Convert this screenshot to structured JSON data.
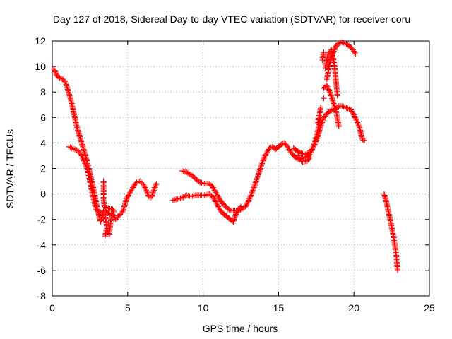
{
  "chart_data": {
    "type": "scatter",
    "title": "Day 127 of 2018, Sidereal Day-to-day VTEC variation (SDTVAR) for receiver coru",
    "xlabel": "GPS time / hours",
    "ylabel": "SDTVAR / TECUs",
    "xlim": [
      0,
      25
    ],
    "ylim": [
      -8,
      12
    ],
    "x_ticks": [
      0,
      5,
      10,
      15,
      20,
      25
    ],
    "y_ticks": [
      -8,
      -6,
      -4,
      -2,
      0,
      2,
      4,
      6,
      8,
      10,
      12
    ],
    "grid": true,
    "legend": "none",
    "marker": "+",
    "color": "#ff0000",
    "series": [
      {
        "points": [
          [
            0.1,
            9.8
          ],
          [
            0.2,
            9.6
          ],
          [
            0.3,
            9.3
          ],
          [
            0.5,
            9.1
          ],
          [
            0.7,
            9.0
          ],
          [
            0.9,
            8.7
          ],
          [
            1.0,
            8.3
          ],
          [
            1.1,
            7.9
          ],
          [
            1.2,
            7.5
          ],
          [
            1.3,
            7.0
          ],
          [
            1.4,
            6.5
          ],
          [
            1.5,
            6.0
          ],
          [
            1.6,
            5.4
          ],
          [
            1.7,
            5.0
          ],
          [
            1.8,
            4.6
          ],
          [
            1.9,
            4.2
          ],
          [
            2.0,
            3.8
          ],
          [
            2.1,
            3.4
          ],
          [
            2.2,
            3.0
          ],
          [
            2.3,
            2.6
          ],
          [
            2.4,
            2.1
          ],
          [
            2.5,
            1.6
          ],
          [
            2.6,
            1.1
          ],
          [
            2.7,
            0.6
          ],
          [
            2.8,
            0.0
          ],
          [
            2.9,
            -0.6
          ],
          [
            3.0,
            -1.2
          ],
          [
            3.1,
            -1.7
          ],
          [
            3.2,
            -2.2
          ],
          [
            3.3,
            -1.8
          ],
          [
            3.4,
            -1.5
          ],
          [
            3.5,
            -1.6
          ],
          [
            3.6,
            -2.5
          ],
          [
            3.7,
            -3.0
          ],
          [
            3.8,
            -2.9
          ],
          [
            3.9,
            -2.0
          ],
          [
            4.0,
            -1.6
          ],
          [
            4.1,
            -1.8
          ],
          [
            4.2,
            -2.0
          ],
          [
            4.3,
            -1.9
          ],
          [
            4.4,
            -1.7
          ],
          [
            4.5,
            -1.6
          ],
          [
            4.6,
            -1.5
          ],
          [
            4.7,
            -1.3
          ],
          [
            4.8,
            -0.9
          ],
          [
            4.9,
            -0.5
          ],
          [
            5.0,
            -0.2
          ],
          [
            5.1,
            0.0
          ],
          [
            5.2,
            0.2
          ],
          [
            5.3,
            0.4
          ],
          [
            5.4,
            0.6
          ],
          [
            5.5,
            0.8
          ],
          [
            5.6,
            0.9
          ],
          [
            5.7,
            1.0
          ],
          [
            5.8,
            1.0
          ],
          [
            5.9,
            0.9
          ],
          [
            6.0,
            0.8
          ],
          [
            6.1,
            0.6
          ],
          [
            6.2,
            0.4
          ],
          [
            6.3,
            0.1
          ],
          [
            6.4,
            -0.2
          ],
          [
            6.5,
            -0.3
          ],
          [
            6.6,
            -0.2
          ],
          [
            6.7,
            0.2
          ],
          [
            6.8,
            0.5
          ],
          [
            6.9,
            0.8
          ],
          [
            1.1,
            3.7
          ],
          [
            1.3,
            3.6
          ],
          [
            1.5,
            3.5
          ],
          [
            1.7,
            3.4
          ],
          [
            1.9,
            3.1
          ],
          [
            2.1,
            2.6
          ],
          [
            2.3,
            2.0
          ],
          [
            2.5,
            1.0
          ],
          [
            2.7,
            -0.2
          ],
          [
            2.9,
            -1.2
          ],
          [
            3.1,
            -1.5
          ],
          [
            3.3,
            -1.4
          ],
          [
            3.5,
            -1.3
          ],
          [
            3.7,
            -1.5
          ],
          [
            3.9,
            -1.6
          ],
          [
            3.5,
            -3.3
          ],
          [
            3.6,
            -2.8
          ],
          [
            3.8,
            -3.2
          ],
          [
            3.4,
            1.0
          ],
          [
            3.4,
            0.3
          ],
          [
            3.4,
            -0.4
          ],
          [
            3.45,
            -1.0
          ],
          [
            4.0,
            -1.2
          ],
          [
            4.1,
            -1.4
          ],
          [
            8.0,
            -0.5
          ],
          [
            8.3,
            -0.4
          ],
          [
            8.6,
            -0.3
          ],
          [
            8.9,
            -0.1
          ],
          [
            9.2,
            -0.2
          ],
          [
            9.5,
            -0.1
          ],
          [
            9.8,
            -0.1
          ],
          [
            10.1,
            -0.1
          ],
          [
            10.4,
            0.0
          ],
          [
            10.7,
            -0.3
          ],
          [
            11.0,
            -1.0
          ],
          [
            11.2,
            -1.4
          ],
          [
            11.4,
            -1.6
          ],
          [
            11.6,
            -1.8
          ],
          [
            11.8,
            -2.0
          ],
          [
            12.0,
            -2.2
          ],
          [
            12.2,
            -1.5
          ],
          [
            12.5,
            -1.0
          ],
          [
            8.6,
            1.8
          ],
          [
            8.9,
            1.7
          ],
          [
            9.2,
            1.5
          ],
          [
            9.5,
            1.2
          ],
          [
            9.8,
            0.9
          ],
          [
            10.1,
            0.8
          ],
          [
            10.4,
            0.8
          ],
          [
            10.6,
            0.6
          ],
          [
            10.8,
            0.2
          ],
          [
            11.0,
            -0.2
          ],
          [
            11.2,
            -0.6
          ],
          [
            11.5,
            -1.0
          ],
          [
            11.8,
            -1.3
          ],
          [
            12.1,
            -1.3
          ],
          [
            12.4,
            -1.3
          ],
          [
            12.8,
            -1.0
          ],
          [
            13.0,
            -0.6
          ],
          [
            13.2,
            0.0
          ],
          [
            13.4,
            0.6
          ],
          [
            13.6,
            1.3
          ],
          [
            13.8,
            2.0
          ],
          [
            14.0,
            2.7
          ],
          [
            14.2,
            3.2
          ],
          [
            14.4,
            3.6
          ],
          [
            14.6,
            3.7
          ],
          [
            14.8,
            3.5
          ],
          [
            15.0,
            3.7
          ],
          [
            15.2,
            3.9
          ],
          [
            15.4,
            4.0
          ],
          [
            15.6,
            3.7
          ],
          [
            15.8,
            3.3
          ],
          [
            16.0,
            3.0
          ],
          [
            16.2,
            2.8
          ],
          [
            16.4,
            2.7
          ],
          [
            16.6,
            2.8
          ],
          [
            16.8,
            2.9
          ],
          [
            17.0,
            3.0
          ],
          [
            17.2,
            3.4
          ],
          [
            17.4,
            4.0
          ],
          [
            17.6,
            4.9
          ],
          [
            17.8,
            6.0
          ],
          [
            18.0,
            7.5
          ],
          [
            18.2,
            9.0
          ],
          [
            18.4,
            10.3
          ],
          [
            18.6,
            11.0
          ],
          [
            18.8,
            11.6
          ],
          [
            19.0,
            11.8
          ],
          [
            19.2,
            11.9
          ],
          [
            19.4,
            11.8
          ],
          [
            19.6,
            11.7
          ],
          [
            19.8,
            11.5
          ],
          [
            20.0,
            11.2
          ],
          [
            20.1,
            11.0
          ],
          [
            16.0,
            3.6
          ],
          [
            16.2,
            3.4
          ],
          [
            16.5,
            3.2
          ],
          [
            16.8,
            3.1
          ],
          [
            17.1,
            3.3
          ],
          [
            17.4,
            3.9
          ],
          [
            17.6,
            4.5
          ],
          [
            17.8,
            5.3
          ],
          [
            18.0,
            6.0
          ],
          [
            18.2,
            6.3
          ],
          [
            18.4,
            6.5
          ],
          [
            18.6,
            6.6
          ],
          [
            18.8,
            6.7
          ],
          [
            19.0,
            6.9
          ],
          [
            19.2,
            6.9
          ],
          [
            19.4,
            6.8
          ],
          [
            19.6,
            6.7
          ],
          [
            19.8,
            6.6
          ],
          [
            20.0,
            6.2
          ],
          [
            20.2,
            5.7
          ],
          [
            20.4,
            5.1
          ],
          [
            20.5,
            4.5
          ],
          [
            20.6,
            4.2
          ],
          [
            20.7,
            4.2
          ],
          [
            17.6,
            5.5
          ],
          [
            17.8,
            6.8
          ],
          [
            18.0,
            8.3
          ],
          [
            18.2,
            8.5
          ],
          [
            18.4,
            8.0
          ],
          [
            18.6,
            7.3
          ],
          [
            18.8,
            6.6
          ],
          [
            18.9,
            5.9
          ],
          [
            19.0,
            5.3
          ],
          [
            18.1,
            9.9
          ],
          [
            18.3,
            11.0
          ],
          [
            18.5,
            11.3
          ],
          [
            18.7,
            10.2
          ],
          [
            18.8,
            9.0
          ],
          [
            18.9,
            7.7
          ],
          [
            17.9,
            10.5
          ],
          [
            18.0,
            11.1
          ],
          [
            16.3,
            3.0
          ],
          [
            16.5,
            2.6
          ],
          [
            16.6,
            2.5
          ],
          [
            16.9,
            2.6
          ],
          [
            17.1,
            2.9
          ],
          [
            22.0,
            0.0
          ],
          [
            22.1,
            -0.4
          ],
          [
            22.2,
            -0.9
          ],
          [
            22.3,
            -1.5
          ],
          [
            22.4,
            -2.0
          ],
          [
            22.5,
            -2.6
          ],
          [
            22.6,
            -3.2
          ],
          [
            22.7,
            -3.9
          ],
          [
            22.8,
            -4.7
          ],
          [
            22.85,
            -5.5
          ],
          [
            22.9,
            -6.0
          ]
        ]
      }
    ]
  }
}
